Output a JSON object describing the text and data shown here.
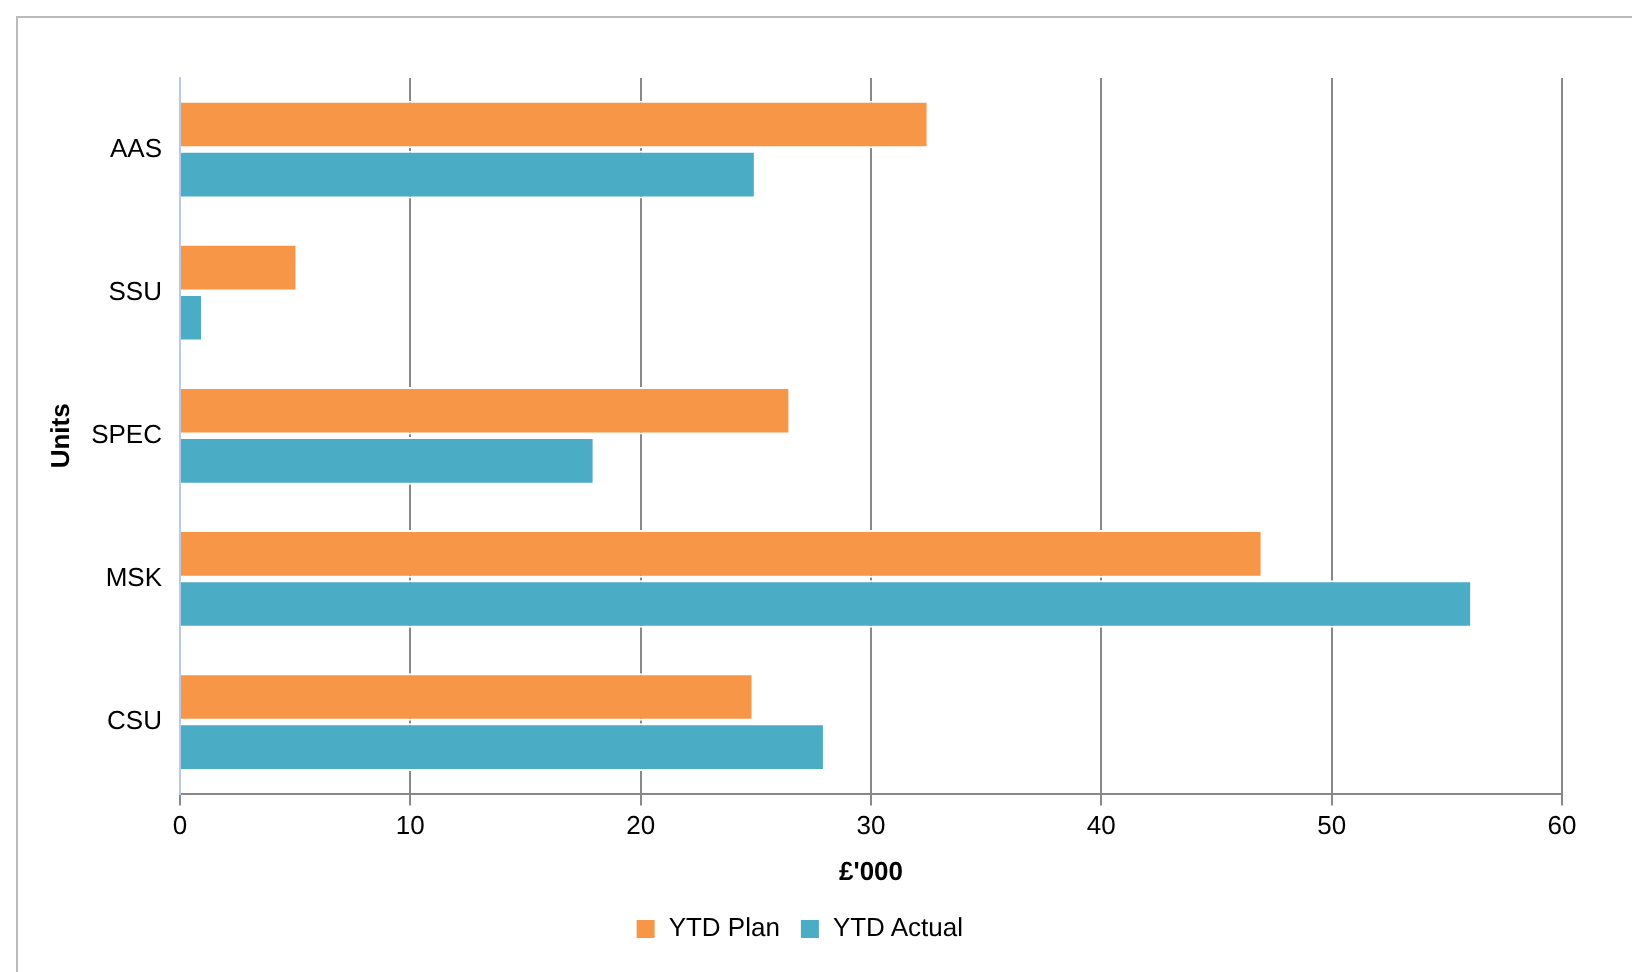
{
  "chart_data": {
    "type": "bar",
    "orientation": "horizontal",
    "ylabel": "Units",
    "xlabel": "£'000",
    "categories": [
      "AAS",
      "SSU",
      "SPEC",
      "MSK",
      "CSU"
    ],
    "series": [
      {
        "name": "YTD Plan",
        "color": "#f79646",
        "values": [
          32.5,
          5.1,
          26.5,
          47.0,
          24.9
        ]
      },
      {
        "name": "YTD Actual",
        "color": "#4bacc6",
        "values": [
          25.0,
          1.0,
          18.0,
          56.1,
          28.0
        ]
      }
    ],
    "xlim": [
      0,
      60
    ],
    "xticks": [
      0,
      10,
      20,
      30,
      40,
      50,
      60
    ],
    "grid": "x",
    "legend": "bottom"
  }
}
